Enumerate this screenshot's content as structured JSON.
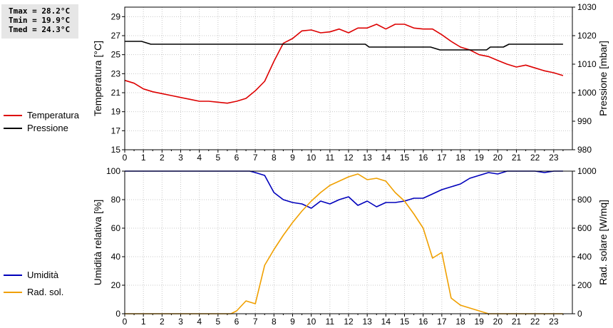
{
  "stats": {
    "tmax": "Tmax = 28.2°C",
    "tmin": "Tmin = 19.9°C",
    "tmed": "Tmed = 24.3°C"
  },
  "colors": {
    "temperature": "#dd0000",
    "pressure": "#000000",
    "humidity": "#0000bb",
    "solar": "#f0a000",
    "grid": "#c8c8c8"
  },
  "chart_data": [
    {
      "type": "line",
      "ylabel": "Temperatura [°C]",
      "y2label": "Pressione [mbar]",
      "xlim": [
        0,
        24
      ],
      "ylim": [
        15,
        30
      ],
      "y2lim": [
        980,
        1030
      ],
      "xticks": [
        "0",
        "1",
        "2",
        "3",
        "4",
        "5",
        "6",
        "7",
        "8",
        "9",
        "10",
        "11",
        "12",
        "13",
        "14",
        "15",
        "16",
        "17",
        "18",
        "19",
        "20",
        "21",
        "22",
        "23"
      ],
      "yticks": [
        "15",
        "17",
        "19",
        "21",
        "23",
        "25",
        "27",
        "29"
      ],
      "y2ticks": [
        "980",
        "990",
        "1000",
        "1010",
        "1020",
        "1030"
      ],
      "grid": true,
      "legend_position": "left",
      "series": [
        {
          "name": "Temperatura",
          "axis": "left",
          "x": [
            0,
            0.5,
            1,
            1.5,
            2,
            2.5,
            3,
            3.5,
            4,
            4.5,
            5,
            5.5,
            6,
            6.5,
            7,
            7.5,
            8,
            8.5,
            9,
            9.5,
            10,
            10.5,
            11,
            11.5,
            12,
            12.5,
            13,
            13.5,
            14,
            14.5,
            15,
            15.5,
            16,
            16.5,
            17,
            17.5,
            18,
            18.5,
            19,
            19.5,
            20,
            20.5,
            21,
            21.5,
            22,
            22.5,
            23,
            23.5
          ],
          "y": [
            22.3,
            22.0,
            21.4,
            21.1,
            20.9,
            20.7,
            20.5,
            20.3,
            20.1,
            20.1,
            20.0,
            19.9,
            20.1,
            20.4,
            21.2,
            22.2,
            24.3,
            26.2,
            26.7,
            27.5,
            27.6,
            27.3,
            27.4,
            27.7,
            27.3,
            27.8,
            27.8,
            28.2,
            27.7,
            28.2,
            28.2,
            27.8,
            27.7,
            27.7,
            27.1,
            26.4,
            25.8,
            25.5,
            25.0,
            24.8,
            24.4,
            24.0,
            23.7,
            23.9,
            23.6,
            23.3,
            23.1,
            22.8
          ]
        },
        {
          "name": "Pressione",
          "axis": "right",
          "x": [
            0,
            0.9,
            1.4,
            2,
            3,
            4,
            5,
            6,
            7,
            8,
            9,
            10,
            11,
            12,
            12.9,
            13.1,
            14,
            15,
            16,
            16.4,
            16.9,
            17.2,
            18,
            19,
            19.4,
            19.6,
            20.3,
            20.6,
            21,
            22,
            23,
            23.5
          ],
          "y": [
            1018,
            1018,
            1017,
            1017,
            1017,
            1017,
            1017,
            1017,
            1017,
            1017,
            1017,
            1017,
            1017,
            1017,
            1017,
            1016,
            1016,
            1016,
            1016,
            1016,
            1015,
            1015,
            1015,
            1015,
            1015,
            1016,
            1016,
            1017,
            1017,
            1017,
            1017,
            1017
          ]
        }
      ]
    },
    {
      "type": "line",
      "ylabel": "Umidità relativa [%]",
      "y2label": "Rad. solare [W/mq]",
      "xlim": [
        0,
        24
      ],
      "ylim": [
        0,
        100
      ],
      "y2lim": [
        0,
        1000
      ],
      "xticks": [
        "0",
        "1",
        "2",
        "3",
        "4",
        "5",
        "6",
        "7",
        "8",
        "9",
        "10",
        "11",
        "12",
        "13",
        "14",
        "15",
        "16",
        "17",
        "18",
        "19",
        "20",
        "21",
        "22",
        "23"
      ],
      "yticks": [
        "0",
        "20",
        "40",
        "60",
        "80",
        "100"
      ],
      "y2ticks": [
        "0",
        "200",
        "400",
        "600",
        "800",
        "1000"
      ],
      "grid": true,
      "legend_position": "left",
      "series": [
        {
          "name": "Umidità",
          "axis": "left",
          "x": [
            0,
            1,
            2,
            3,
            4,
            5,
            6,
            6.7,
            7,
            7.5,
            8,
            8.5,
            9,
            9.5,
            10,
            10.5,
            11,
            11.5,
            12,
            12.5,
            13,
            13.5,
            14,
            14.5,
            15,
            15.5,
            16,
            16.5,
            17,
            17.5,
            18,
            18.5,
            19,
            19.5,
            20,
            20.5,
            21,
            21.5,
            22,
            22.5,
            23,
            23.5
          ],
          "y": [
            100,
            100,
            100,
            100,
            100,
            100,
            100,
            100,
            99,
            97,
            85,
            80,
            78,
            77,
            74,
            79,
            77,
            80,
            82,
            76,
            79,
            75,
            78,
            78,
            79,
            81,
            81,
            84,
            87,
            89,
            91,
            95,
            97,
            99,
            98,
            100,
            100,
            100,
            100,
            99,
            100,
            100
          ]
        },
        {
          "name": "Rad. sol.",
          "axis": "right",
          "x": [
            0,
            1,
            2,
            3,
            4,
            5,
            5.7,
            6,
            6.5,
            7,
            7.5,
            8,
            8.5,
            9,
            9.5,
            10,
            10.5,
            11,
            11.5,
            12,
            12.5,
            13,
            13.5,
            14,
            14.5,
            15,
            15.5,
            16,
            16.5,
            17,
            17.5,
            18,
            18.5,
            19,
            19.5,
            20,
            21,
            22,
            23,
            23.5
          ],
          "y": [
            0,
            0,
            0,
            0,
            0,
            0,
            0,
            20,
            90,
            70,
            340,
            450,
            550,
            640,
            720,
            790,
            850,
            900,
            930,
            960,
            980,
            940,
            950,
            930,
            850,
            790,
            700,
            600,
            390,
            430,
            110,
            60,
            40,
            20,
            0,
            0,
            0,
            0,
            0,
            0
          ]
        }
      ]
    }
  ]
}
